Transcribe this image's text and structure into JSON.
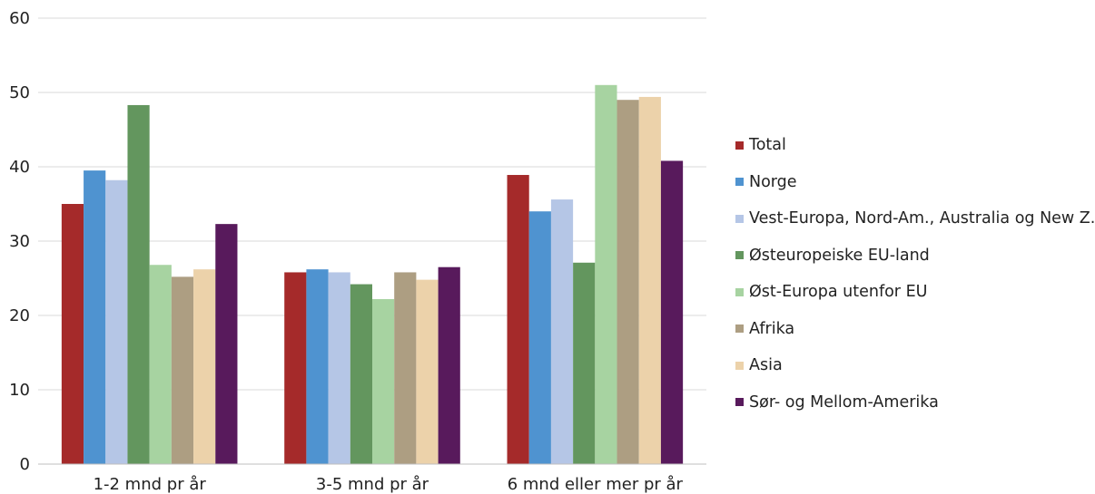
{
  "chart_data": {
    "type": "bar",
    "title": "",
    "xlabel": "",
    "ylabel": "",
    "ylim": [
      0,
      60
    ],
    "yticks": [
      "0",
      "10",
      "20",
      "30",
      "40",
      "50",
      "60"
    ],
    "grid": true,
    "legend_position": "right",
    "categories": [
      "1-2 mnd pr år",
      "3-5 mnd pr år",
      "6 mnd eller mer pr år"
    ],
    "series": [
      {
        "name": "Total",
        "color": "#a52a2a",
        "values": [
          35.0,
          25.8,
          38.9
        ]
      },
      {
        "name": "Norge",
        "color": "#4f93d0",
        "values": [
          39.5,
          26.2,
          34.0
        ]
      },
      {
        "name": "Vest-Europa, Nord-Am., Australia og New Z.",
        "color": "#b5c6e6",
        "values": [
          38.2,
          25.8,
          35.6
        ]
      },
      {
        "name": "Østeuropeiske EU-land",
        "color": "#63965e",
        "values": [
          48.3,
          24.2,
          27.1
        ]
      },
      {
        "name": "Øst-Europa utenfor EU",
        "color": "#a7d3a1",
        "values": [
          26.8,
          22.2,
          51.0
        ]
      },
      {
        "name": "Afrika",
        "color": "#ad9e82",
        "values": [
          25.2,
          25.8,
          49.0
        ]
      },
      {
        "name": "Asia",
        "color": "#ecd2aa",
        "values": [
          26.2,
          24.8,
          49.4
        ]
      },
      {
        "name": "Sør- og Mellom-Amerika",
        "color": "#581a5c",
        "values": [
          32.3,
          26.5,
          40.8
        ]
      }
    ]
  }
}
